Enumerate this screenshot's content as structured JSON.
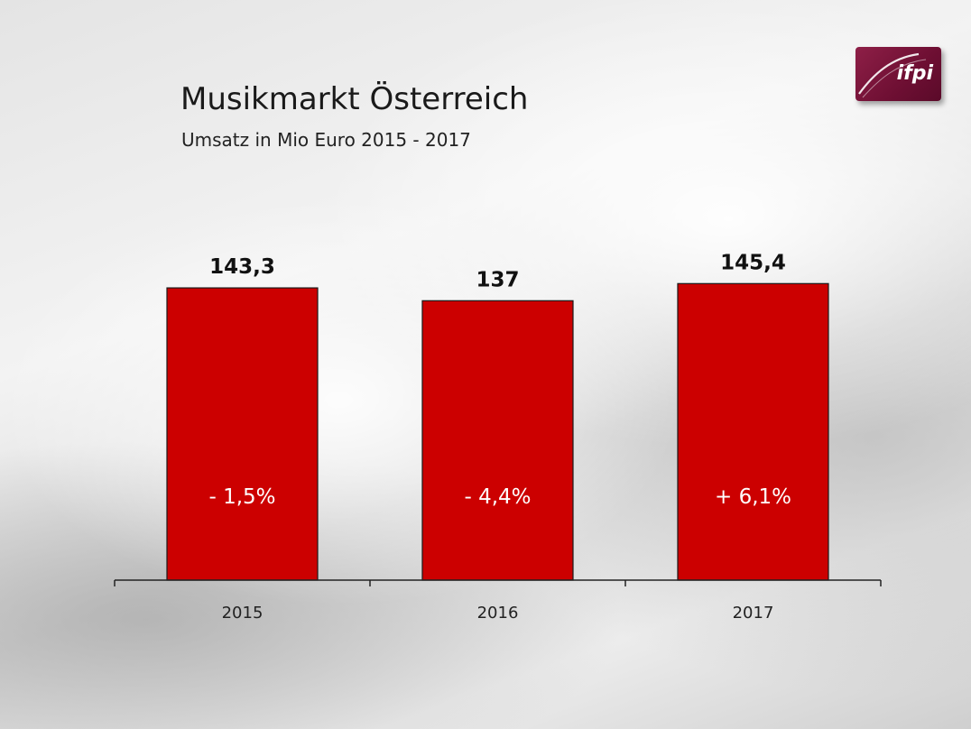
{
  "header": {
    "title": "Musikmarkt Österreich",
    "subtitle": "Umsatz in Mio Euro 2015 - 2017"
  },
  "logo": {
    "text": "ifpi",
    "color": "#7a1238"
  },
  "chart_data": {
    "type": "bar",
    "title": "Musikmarkt Österreich",
    "subtitle": "Umsatz in Mio Euro 2015 - 2017",
    "categories": [
      "2015",
      "2016",
      "2017"
    ],
    "values": [
      143.3,
      137,
      145.4
    ],
    "value_labels": [
      "143,3",
      "137",
      "145,4"
    ],
    "change_labels": [
      "- 1,5%",
      "- 4,4%",
      "+ 6,1%"
    ],
    "bar_color": "#cc0000",
    "ylim": [
      0,
      150
    ],
    "grid": false,
    "legend": "none"
  }
}
